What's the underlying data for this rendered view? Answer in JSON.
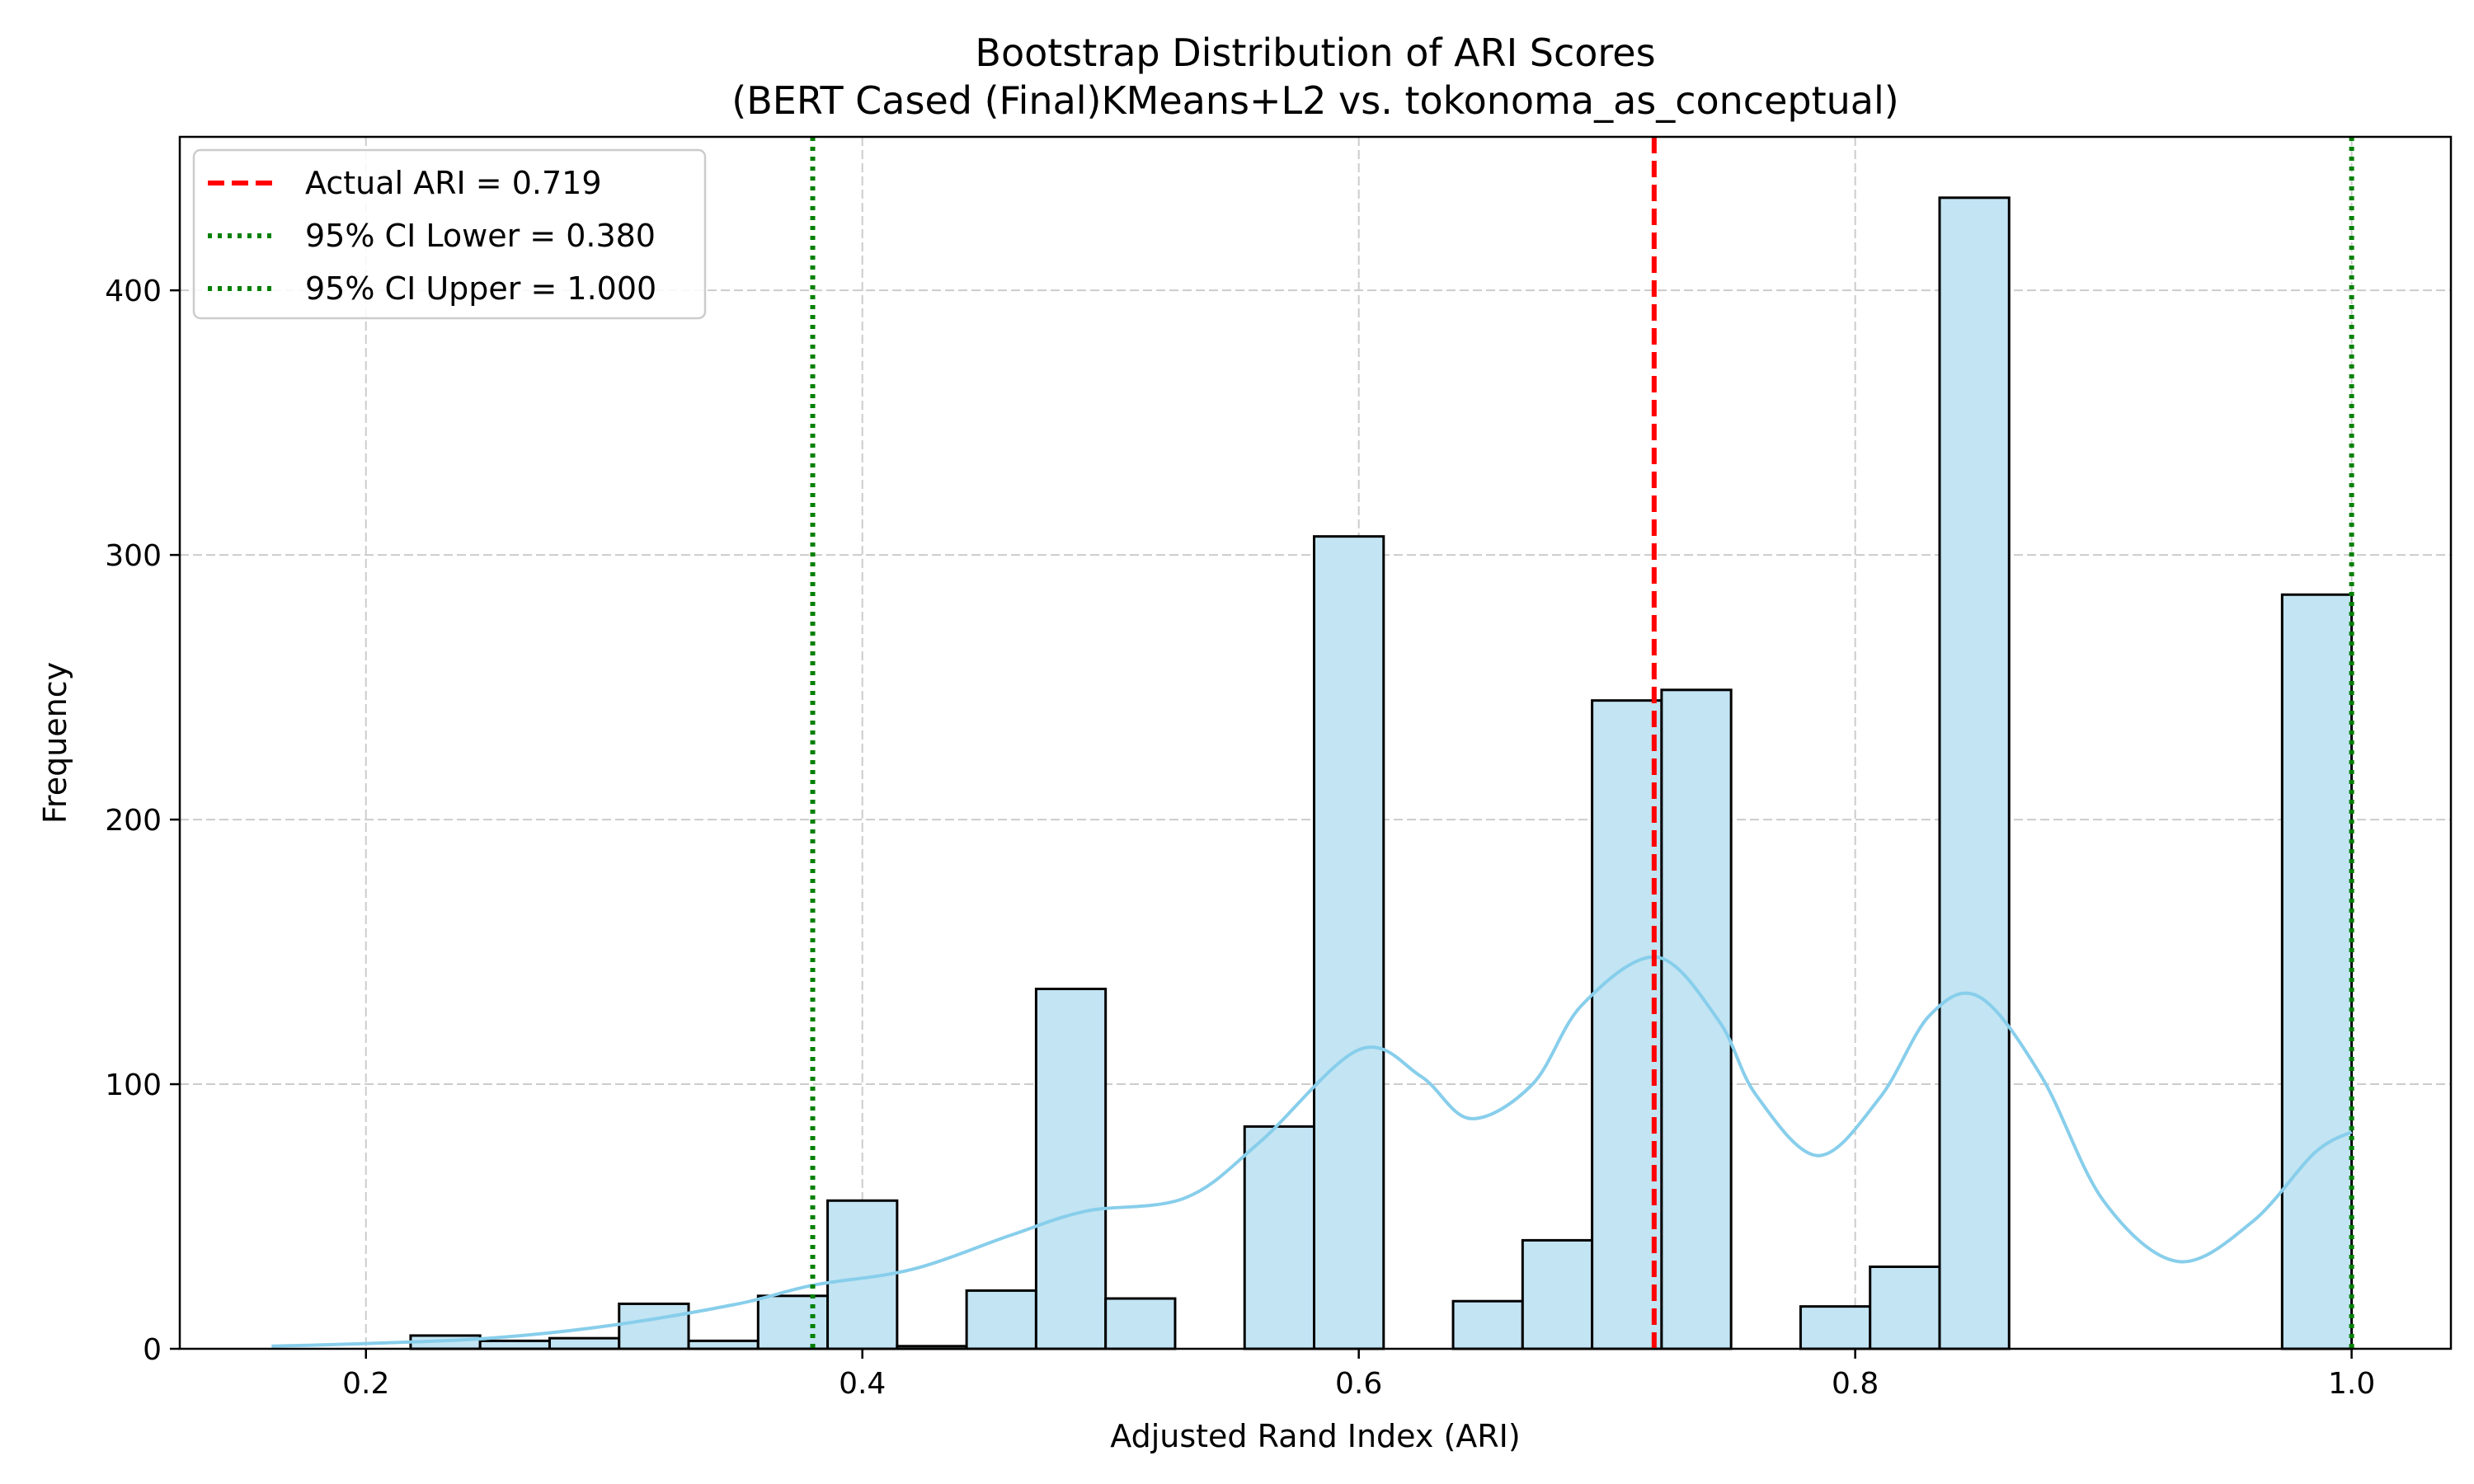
{
  "chart_data": {
    "type": "bar",
    "title": "Bootstrap Distribution of ARI Scores",
    "subtitle": "(BERT Cased (Final)KMeans+L2 vs. tokonoma_as_conceptual)",
    "xlabel": "Adjusted Rand Index (ARI)",
    "ylabel": "Frequency",
    "xlim": [
      0.125,
      1.04
    ],
    "ylim": [
      0,
      458
    ],
    "xticks": [
      0.2,
      0.4,
      0.6,
      0.8,
      1.0
    ],
    "xtick_labels": [
      "0.2",
      "0.4",
      "0.6",
      "0.8",
      "1.0"
    ],
    "yticks": [
      0,
      100,
      200,
      300,
      400
    ],
    "ytick_labels": [
      "0",
      "100",
      "200",
      "300",
      "400"
    ],
    "grid": true,
    "legend_position": "top-left",
    "colors": {
      "bar_fill": "#c2e4f3",
      "bar_edge": "#000000",
      "kde": "#87ceeb",
      "actual": "#ff0000",
      "ci": "#008000",
      "grid": "#cccccc"
    },
    "bins": [
      {
        "x0": 0.218,
        "x1": 0.246,
        "count": 5
      },
      {
        "x0": 0.246,
        "x1": 0.274,
        "count": 3
      },
      {
        "x0": 0.274,
        "x1": 0.302,
        "count": 4
      },
      {
        "x0": 0.302,
        "x1": 0.33,
        "count": 17
      },
      {
        "x0": 0.33,
        "x1": 0.358,
        "count": 3
      },
      {
        "x0": 0.358,
        "x1": 0.386,
        "count": 20
      },
      {
        "x0": 0.386,
        "x1": 0.414,
        "count": 56
      },
      {
        "x0": 0.414,
        "x1": 0.442,
        "count": 1
      },
      {
        "x0": 0.442,
        "x1": 0.47,
        "count": 22
      },
      {
        "x0": 0.47,
        "x1": 0.498,
        "count": 136
      },
      {
        "x0": 0.498,
        "x1": 0.526,
        "count": 19
      },
      {
        "x0": 0.526,
        "x1": 0.554,
        "count": 0
      },
      {
        "x0": 0.554,
        "x1": 0.582,
        "count": 84
      },
      {
        "x0": 0.582,
        "x1": 0.61,
        "count": 307
      },
      {
        "x0": 0.61,
        "x1": 0.638,
        "count": 0
      },
      {
        "x0": 0.638,
        "x1": 0.666,
        "count": 18
      },
      {
        "x0": 0.666,
        "x1": 0.694,
        "count": 41
      },
      {
        "x0": 0.694,
        "x1": 0.722,
        "count": 245
      },
      {
        "x0": 0.722,
        "x1": 0.75,
        "count": 249
      },
      {
        "x0": 0.75,
        "x1": 0.778,
        "count": 0
      },
      {
        "x0": 0.778,
        "x1": 0.806,
        "count": 16
      },
      {
        "x0": 0.806,
        "x1": 0.834,
        "count": 31
      },
      {
        "x0": 0.834,
        "x1": 0.862,
        "count": 435
      },
      {
        "x0": 0.862,
        "x1": 0.89,
        "count": 0
      },
      {
        "x0": 0.89,
        "x1": 0.918,
        "count": 0
      },
      {
        "x0": 0.918,
        "x1": 0.946,
        "count": 0
      },
      {
        "x0": 0.946,
        "x1": 0.972,
        "count": 0
      },
      {
        "x0": 0.972,
        "x1": 1.0,
        "count": 285
      }
    ],
    "kde": {
      "x": [
        0.162,
        0.2,
        0.25,
        0.3,
        0.35,
        0.38,
        0.42,
        0.46,
        0.49,
        0.53,
        0.56,
        0.6,
        0.625,
        0.645,
        0.67,
        0.69,
        0.72,
        0.745,
        0.76,
        0.785,
        0.81,
        0.83,
        0.85,
        0.875,
        0.9,
        0.93,
        0.96,
        0.985,
        1.0
      ],
      "y": [
        1,
        2,
        4,
        9,
        17,
        24,
        30,
        43,
        52,
        57,
        78,
        113,
        103,
        87,
        100,
        130,
        148,
        124,
        96,
        73,
        95,
        126,
        133,
        103,
        56,
        33,
        48,
        74,
        82
      ]
    },
    "vlines": [
      {
        "name": "Actual ARI = 0.719",
        "x": 0.719,
        "style": "dashed",
        "color": "#ff0000"
      },
      {
        "name": "95% CI Lower = 0.380",
        "x": 0.38,
        "style": "dotted",
        "color": "#008000"
      },
      {
        "name": "95% CI Upper = 1.000",
        "x": 1.0,
        "style": "dotted",
        "color": "#008000"
      }
    ]
  }
}
